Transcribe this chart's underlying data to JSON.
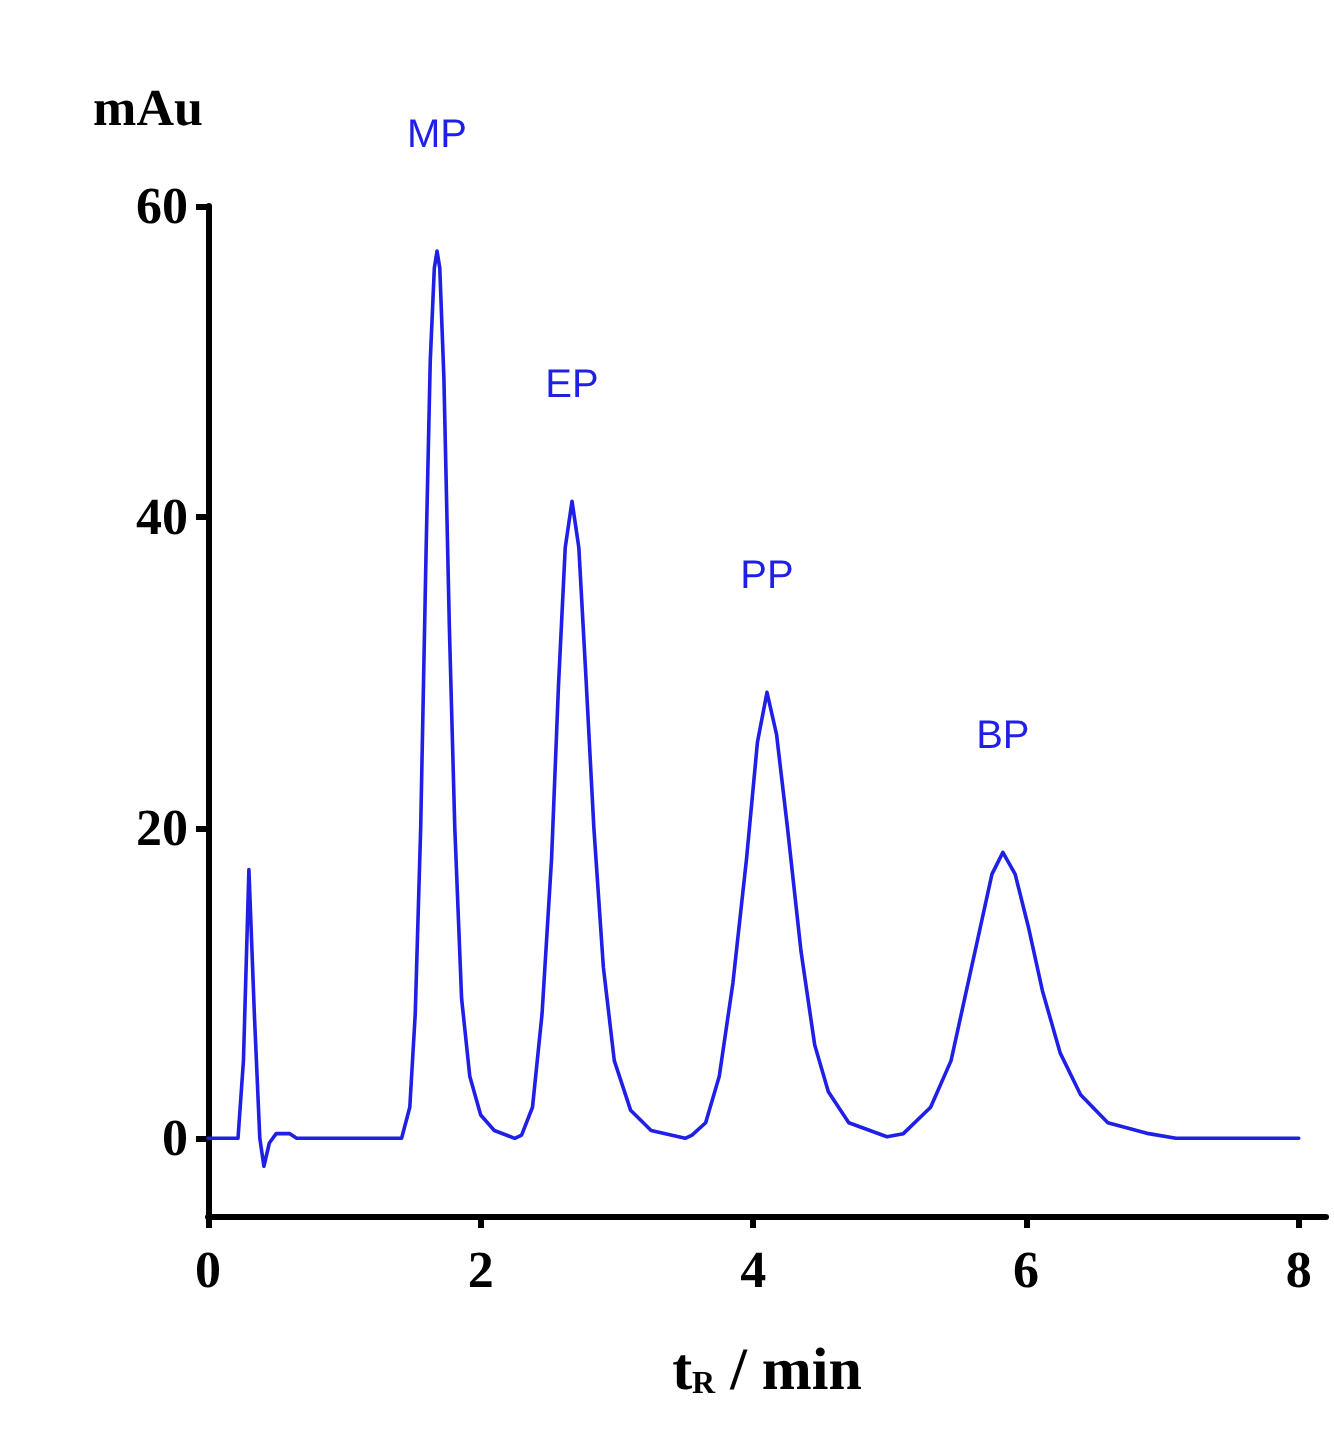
{
  "chart_data": {
    "type": "line",
    "xlabel": "t$_{R}$ / min",
    "ylabel": "mAu",
    "x": [
      0,
      0.22,
      0.26,
      0.3,
      0.34,
      0.38,
      0.41,
      0.45,
      0.5,
      0.6,
      0.65,
      1.42,
      1.48,
      1.52,
      1.56,
      1.6,
      1.63,
      1.66,
      1.68,
      1.7,
      1.73,
      1.77,
      1.81,
      1.86,
      1.92,
      2.0,
      2.1,
      2.25,
      2.3,
      2.38,
      2.45,
      2.52,
      2.57,
      2.62,
      2.67,
      2.72,
      2.77,
      2.83,
      2.9,
      2.98,
      3.1,
      3.25,
      3.5,
      3.55,
      3.65,
      3.75,
      3.85,
      3.95,
      4.03,
      4.1,
      4.17,
      4.25,
      4.35,
      4.45,
      4.55,
      4.7,
      4.98,
      5.1,
      5.3,
      5.45,
      5.55,
      5.65,
      5.75,
      5.83,
      5.92,
      6.02,
      6.12,
      6.25,
      6.4,
      6.6,
      6.9,
      7.1,
      8.0
    ],
    "series": [
      {
        "color": "#1f1fe6",
        "values": [
          0,
          0,
          5,
          17.3,
          8,
          0,
          -1.8,
          -0.3,
          0.3,
          0.3,
          0,
          0,
          2,
          8,
          20,
          38,
          50,
          56,
          57.1,
          56,
          49,
          33,
          20,
          9,
          4,
          1.5,
          0.5,
          0,
          0.2,
          2,
          8,
          18,
          29,
          38,
          41,
          38,
          30,
          20,
          11,
          5,
          1.8,
          0.5,
          0,
          0.2,
          1,
          4,
          10,
          18,
          25.5,
          28.7,
          26,
          20,
          12,
          6,
          3,
          1,
          0.1,
          0.3,
          2,
          5,
          9,
          13,
          17,
          18.4,
          17,
          13.5,
          9.5,
          5.5,
          2.8,
          1,
          0.3,
          0,
          0
        ]
      }
    ],
    "xlim": [
      0,
      8.2
    ],
    "xticks": [
      0,
      2,
      4,
      6,
      8
    ],
    "ylim": [
      -5,
      60
    ],
    "yticks": [
      0,
      20,
      40,
      60
    ],
    "annotations": [
      {
        "text": "MP",
        "x": 1.68,
        "y": 57.1
      },
      {
        "text": "EP",
        "x": 2.67,
        "y": 41
      },
      {
        "text": "PP",
        "x": 4.1,
        "y": 28.7
      },
      {
        "text": "BP",
        "x": 5.83,
        "y": 18.4
      }
    ],
    "grid": false,
    "marker": "none",
    "line_style": "solid"
  }
}
